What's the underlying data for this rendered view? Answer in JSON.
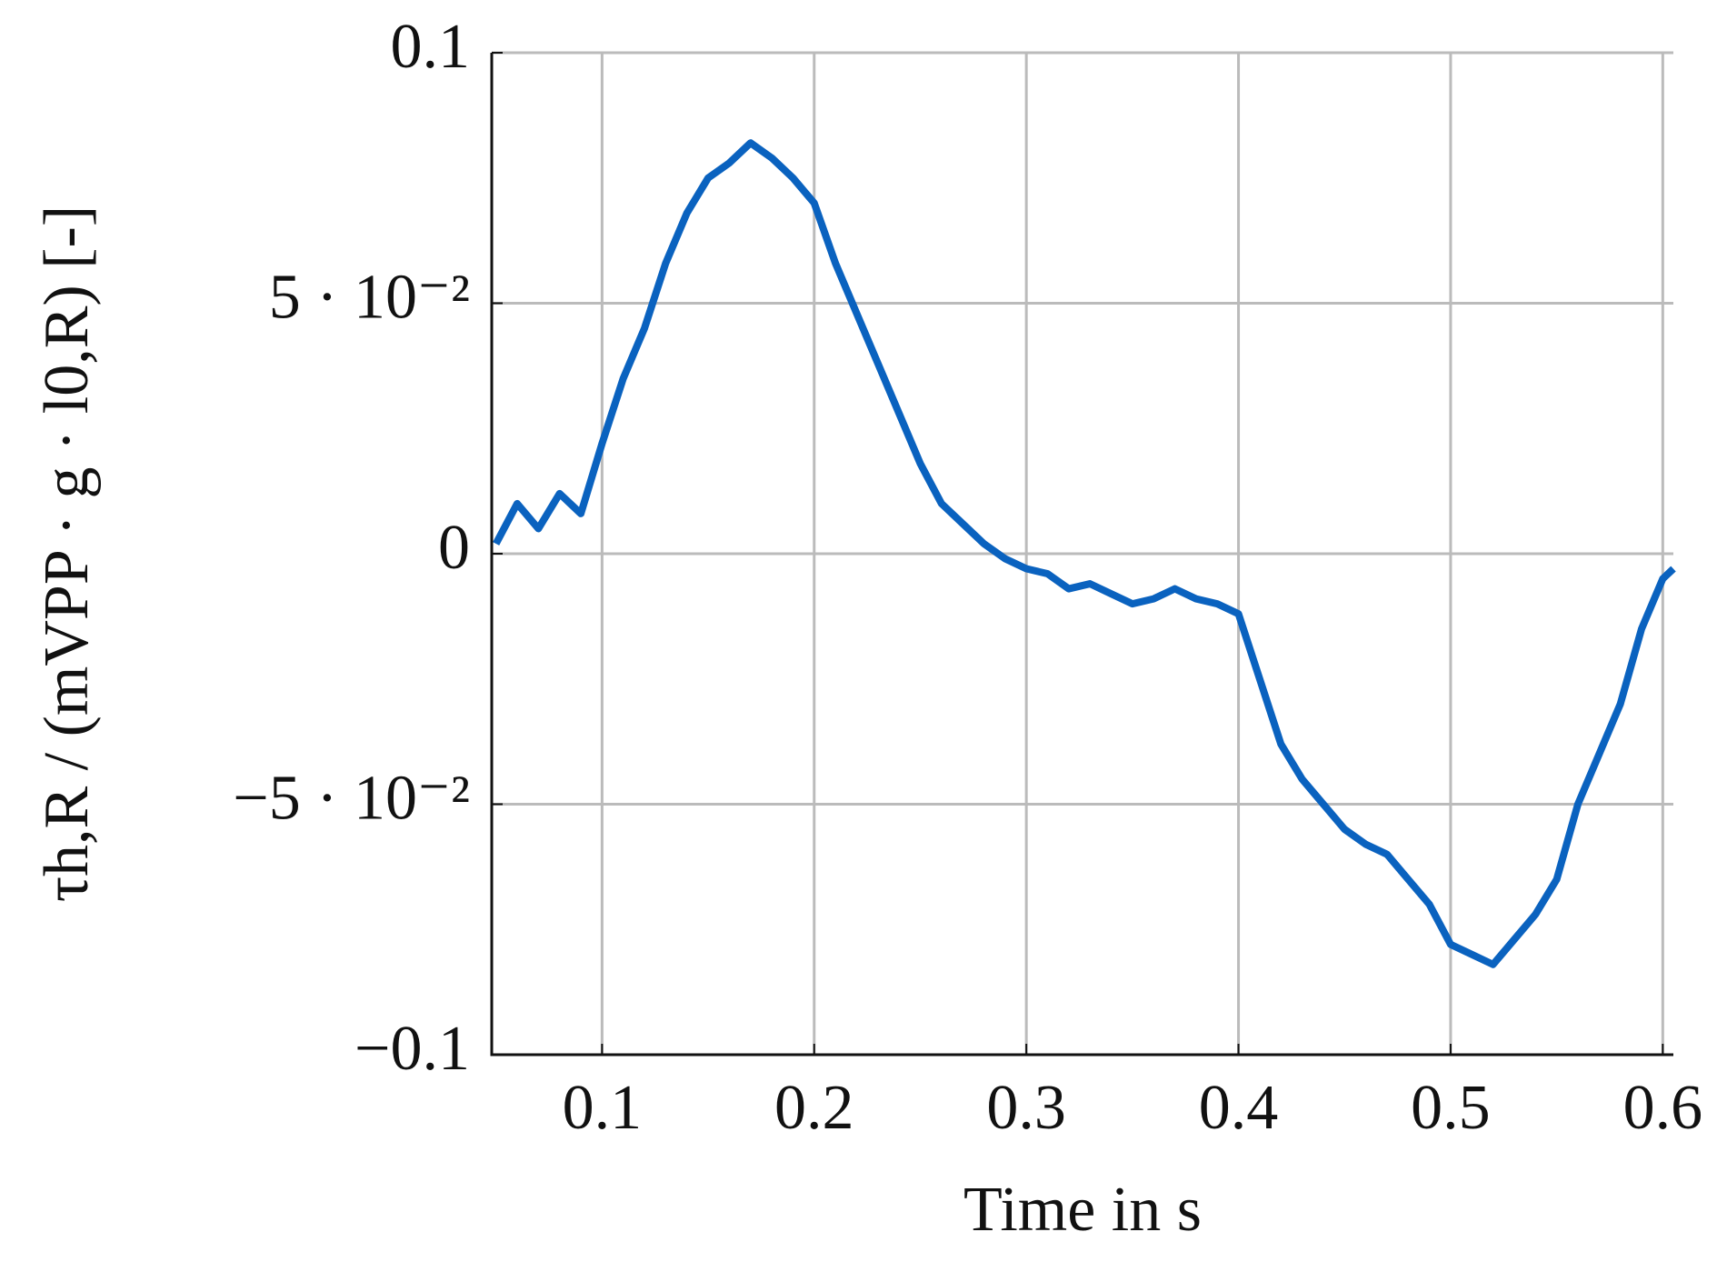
{
  "chart_data": {
    "type": "line",
    "x_label": "Time in s",
    "y_label": "τh,R / (mVPP · g · l0,R) [-]",
    "x": [
      0.05,
      0.06,
      0.07,
      0.08,
      0.09,
      0.1,
      0.11,
      0.12,
      0.13,
      0.14,
      0.15,
      0.16,
      0.17,
      0.18,
      0.19,
      0.2,
      0.21,
      0.22,
      0.23,
      0.24,
      0.25,
      0.26,
      0.27,
      0.28,
      0.29,
      0.3,
      0.31,
      0.32,
      0.33,
      0.34,
      0.35,
      0.36,
      0.37,
      0.38,
      0.39,
      0.4,
      0.41,
      0.42,
      0.43,
      0.44,
      0.45,
      0.46,
      0.47,
      0.48,
      0.49,
      0.5,
      0.51,
      0.52,
      0.53,
      0.54,
      0.55,
      0.56,
      0.57,
      0.58,
      0.59,
      0.6,
      0.605
    ],
    "series": [
      {
        "color": "#0a62bf",
        "values": [
          0.002,
          0.01,
          0.005,
          0.012,
          0.008,
          0.022,
          0.035,
          0.045,
          0.058,
          0.068,
          0.075,
          0.078,
          0.082,
          0.079,
          0.075,
          0.07,
          0.058,
          0.048,
          0.038,
          0.028,
          0.018,
          0.01,
          0.006,
          0.002,
          -0.001,
          -0.003,
          -0.004,
          -0.007,
          -0.006,
          -0.008,
          -0.01,
          -0.009,
          -0.007,
          -0.009,
          -0.01,
          -0.012,
          -0.025,
          -0.038,
          -0.045,
          -0.05,
          -0.055,
          -0.058,
          -0.06,
          -0.065,
          -0.07,
          -0.078,
          -0.08,
          -0.082,
          -0.077,
          -0.072,
          -0.065,
          -0.05,
          -0.04,
          -0.03,
          -0.015,
          -0.005,
          -0.003
        ]
      }
    ],
    "xlim": [
      0.048,
      0.605
    ],
    "xticks": [
      0.1,
      0.2,
      0.3,
      0.4,
      0.5,
      0.6
    ],
    "ylim": [
      -0.1,
      0.1
    ],
    "yticks": [
      {
        "value": -0.1,
        "label": "−0.1"
      },
      {
        "value": -0.05,
        "label": "−5 · 10⁻²"
      },
      0,
      {
        "value": 0.05,
        "label": "5 · 10⁻²"
      },
      0.1
    ],
    "grid": true
  }
}
